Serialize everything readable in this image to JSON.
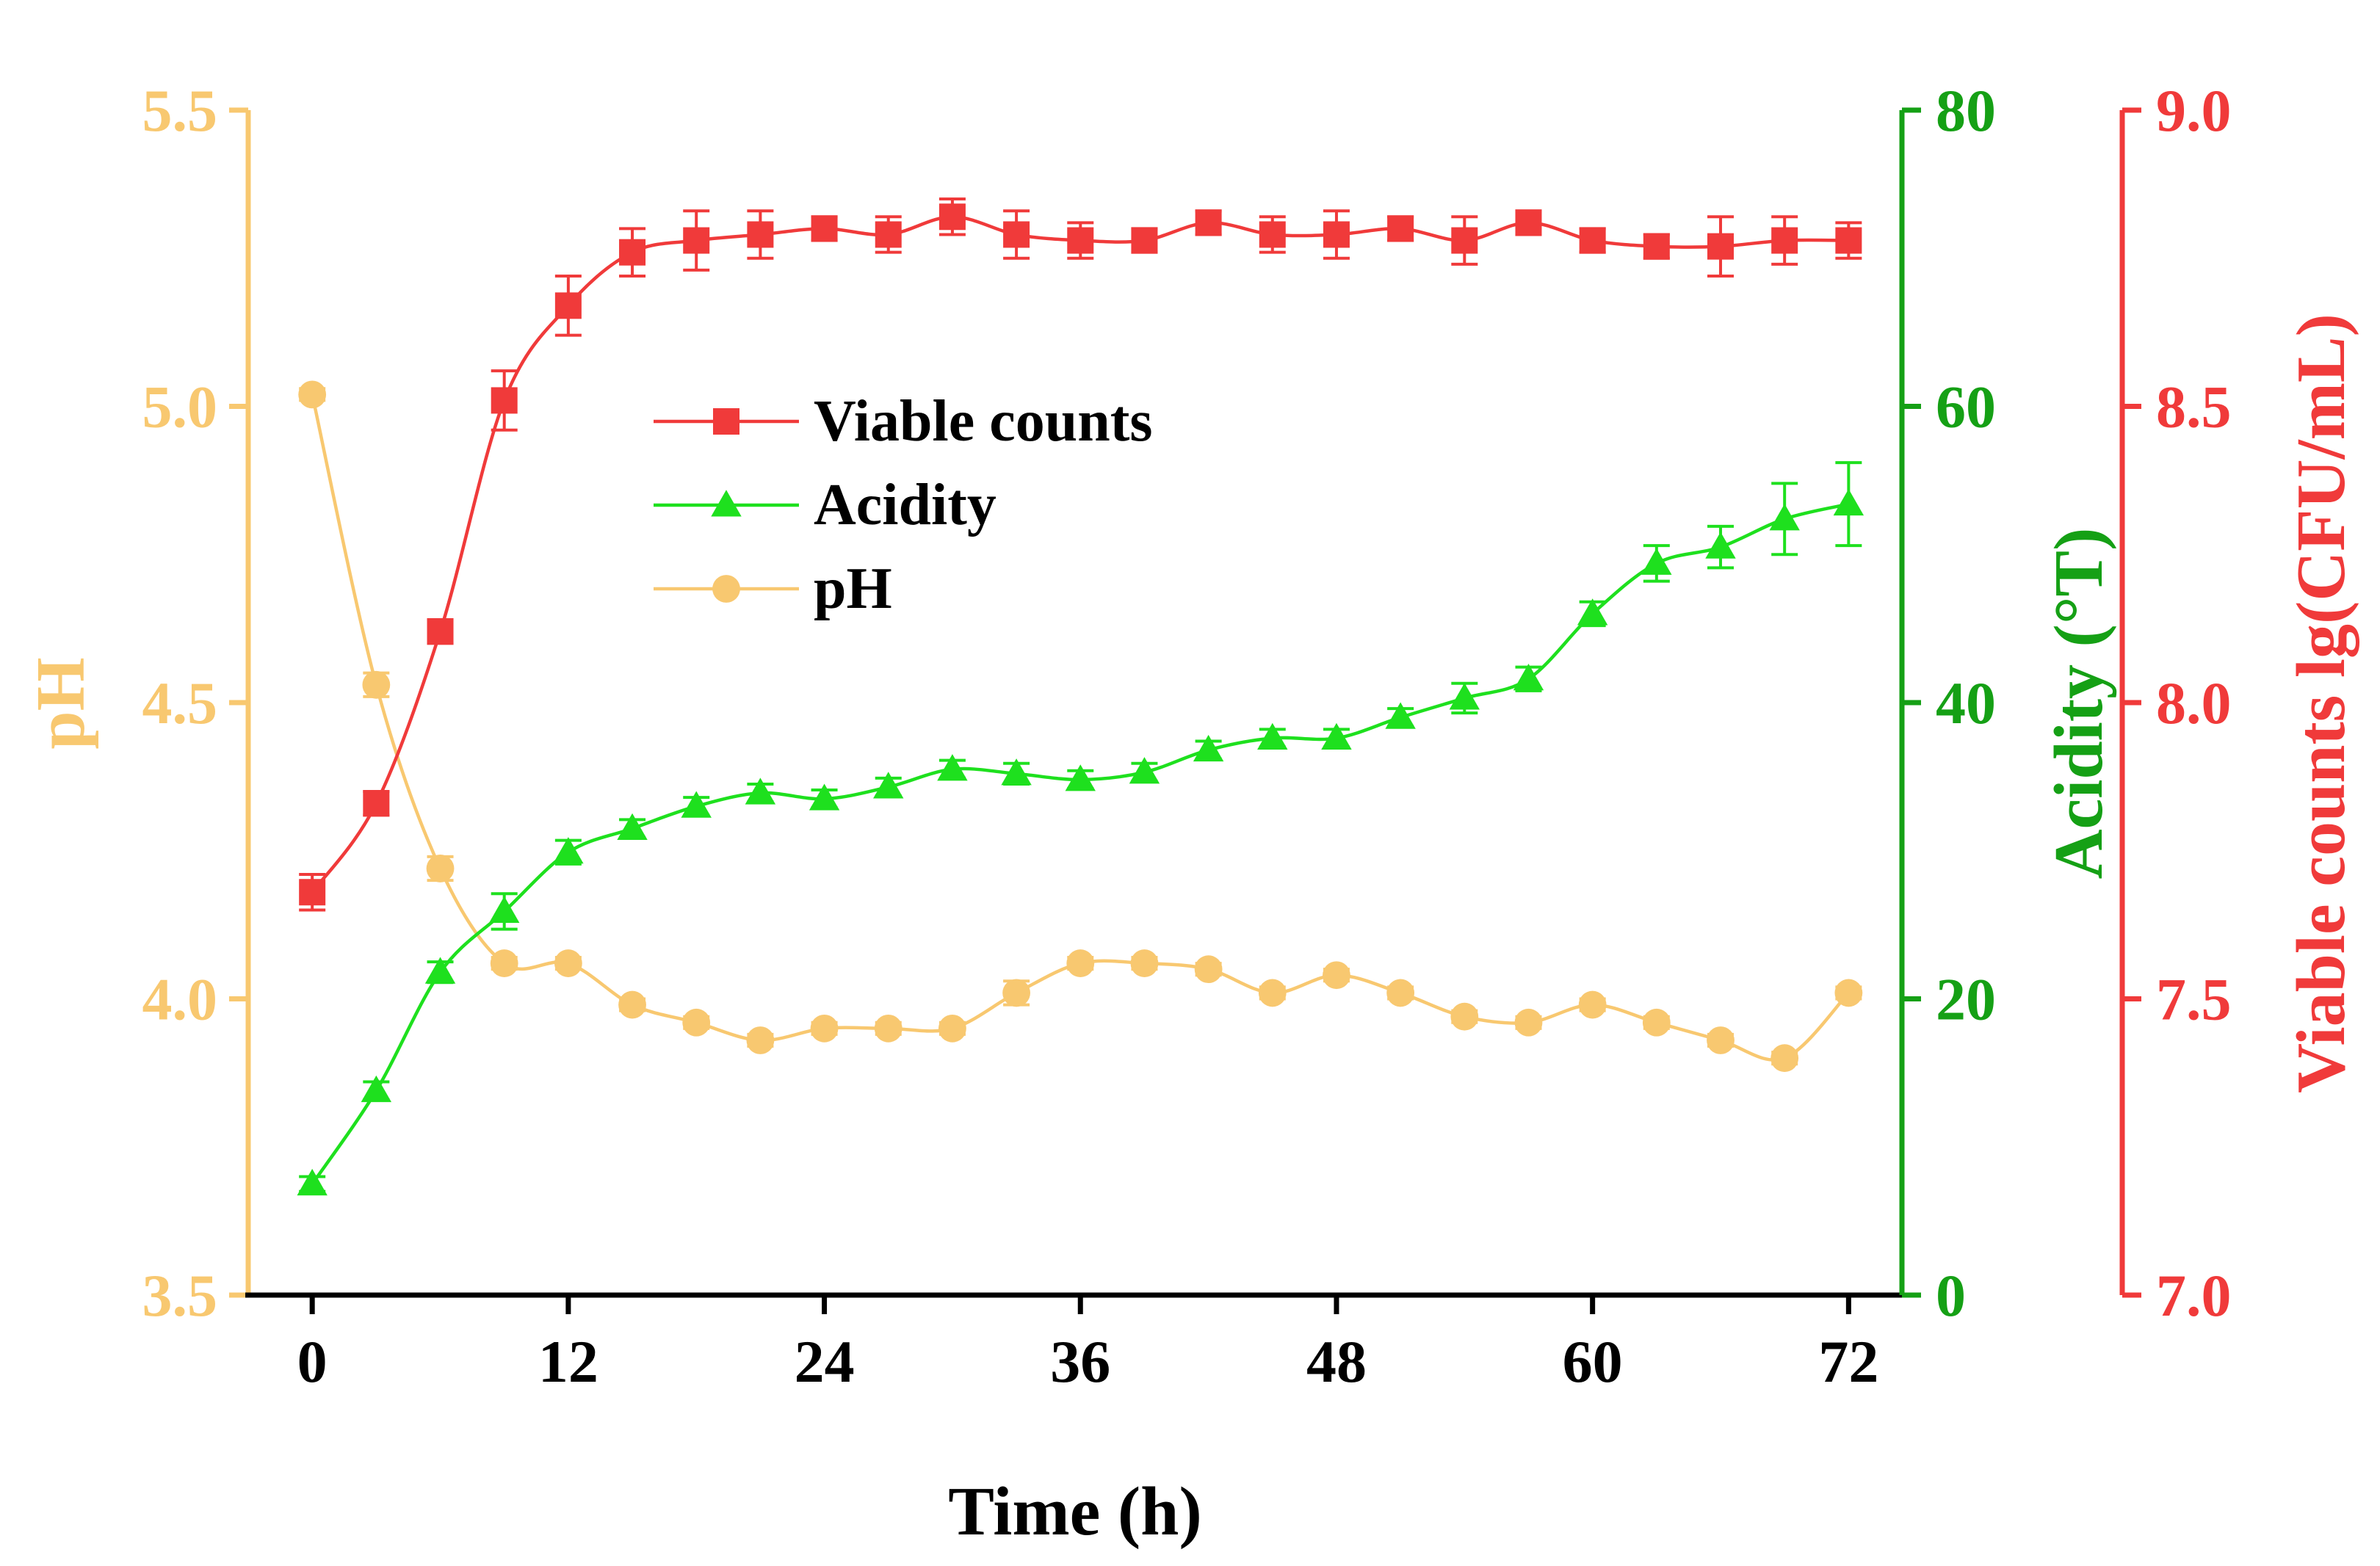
{
  "chart_data": {
    "type": "line",
    "xlabel": "Time (h)",
    "x_ticks": [
      0,
      12,
      24,
      36,
      48,
      60,
      72
    ],
    "xlim": [
      -3,
      74.5
    ],
    "x": [
      0,
      3,
      6,
      9,
      12,
      15,
      18,
      21,
      24,
      27,
      30,
      33,
      36,
      39,
      42,
      45,
      48,
      51,
      54,
      57,
      60,
      63,
      66,
      69,
      72
    ],
    "axes": {
      "ph": {
        "label": "pH",
        "ylim": [
          3.5,
          5.5
        ],
        "ticks": [
          "3.5",
          "4.0",
          "4.5",
          "5.0",
          "5.5"
        ],
        "side": "left"
      },
      "acidity": {
        "label": "Acidity (°T)",
        "ylim": [
          0,
          80
        ],
        "ticks": [
          "0",
          "20",
          "40",
          "60",
          "80"
        ],
        "side": "right"
      },
      "viable": {
        "label": "Viable counts lg(CFU/mL)",
        "ylim": [
          7.0,
          9.0
        ],
        "ticks": [
          "7.0",
          "7.5",
          "8.0",
          "8.5",
          "9.0"
        ],
        "side": "far-right"
      }
    },
    "series": [
      {
        "name": "Viable counts",
        "axis": "viable",
        "color": "#f03a3a",
        "marker": "square",
        "values": [
          7.68,
          7.83,
          8.12,
          8.51,
          8.67,
          8.76,
          8.78,
          8.79,
          8.8,
          8.79,
          8.82,
          8.79,
          8.78,
          8.78,
          8.81,
          8.79,
          8.79,
          8.8,
          8.78,
          8.81,
          8.78,
          8.77,
          8.77,
          8.78,
          8.78
        ],
        "errors": [
          0.03,
          0.02,
          0.02,
          0.05,
          0.05,
          0.04,
          0.05,
          0.04,
          0.02,
          0.03,
          0.03,
          0.04,
          0.03,
          0.02,
          0.02,
          0.03,
          0.04,
          0.02,
          0.04,
          0.02,
          0.02,
          0.02,
          0.05,
          0.04,
          0.03
        ]
      },
      {
        "name": "Acidity",
        "axis": "acidity",
        "color": "#1ee01e",
        "marker": "triangle",
        "values": [
          7.5,
          13.8,
          21.8,
          25.9,
          29.9,
          31.5,
          33.0,
          33.9,
          33.5,
          34.3,
          35.5,
          35.2,
          34.8,
          35.3,
          36.8,
          37.6,
          37.6,
          39.0,
          40.3,
          41.6,
          46.0,
          49.4,
          50.5,
          52.4,
          53.4
        ],
        "errors": [
          0.5,
          0.6,
          0.7,
          1.2,
          0.8,
          0.6,
          0.6,
          0.6,
          0.6,
          0.6,
          0.6,
          0.7,
          0.6,
          0.6,
          0.6,
          0.6,
          0.6,
          0.6,
          1.0,
          0.8,
          0.8,
          1.2,
          1.4,
          2.4,
          2.8
        ]
      },
      {
        "name": "pH",
        "axis": "ph",
        "color": "#f8c870",
        "marker": "circle",
        "values": [
          5.02,
          4.53,
          4.22,
          4.06,
          4.06,
          3.99,
          3.96,
          3.93,
          3.95,
          3.95,
          3.95,
          4.01,
          4.06,
          4.06,
          4.05,
          4.01,
          4.04,
          4.01,
          3.97,
          3.96,
          3.99,
          3.96,
          3.93,
          3.9,
          4.01
        ],
        "errors": [
          0.01,
          0.02,
          0.02,
          0.01,
          0.01,
          0.01,
          0.01,
          0.01,
          0.01,
          0.01,
          0.01,
          0.02,
          0.01,
          0.01,
          0.01,
          0.01,
          0.01,
          0.01,
          0.01,
          0.01,
          0.01,
          0.01,
          0.01,
          0.01,
          0.01
        ]
      }
    ],
    "legend": {
      "position": "upper-center",
      "entries": [
        "Viable counts",
        "Acidity",
        "pH"
      ]
    },
    "grid": false
  },
  "colors": {
    "ph_axis": "#f8c870",
    "acidity_axis": "#15a015",
    "viable_axis": "#f03a3a",
    "x_axis": "#000000"
  }
}
